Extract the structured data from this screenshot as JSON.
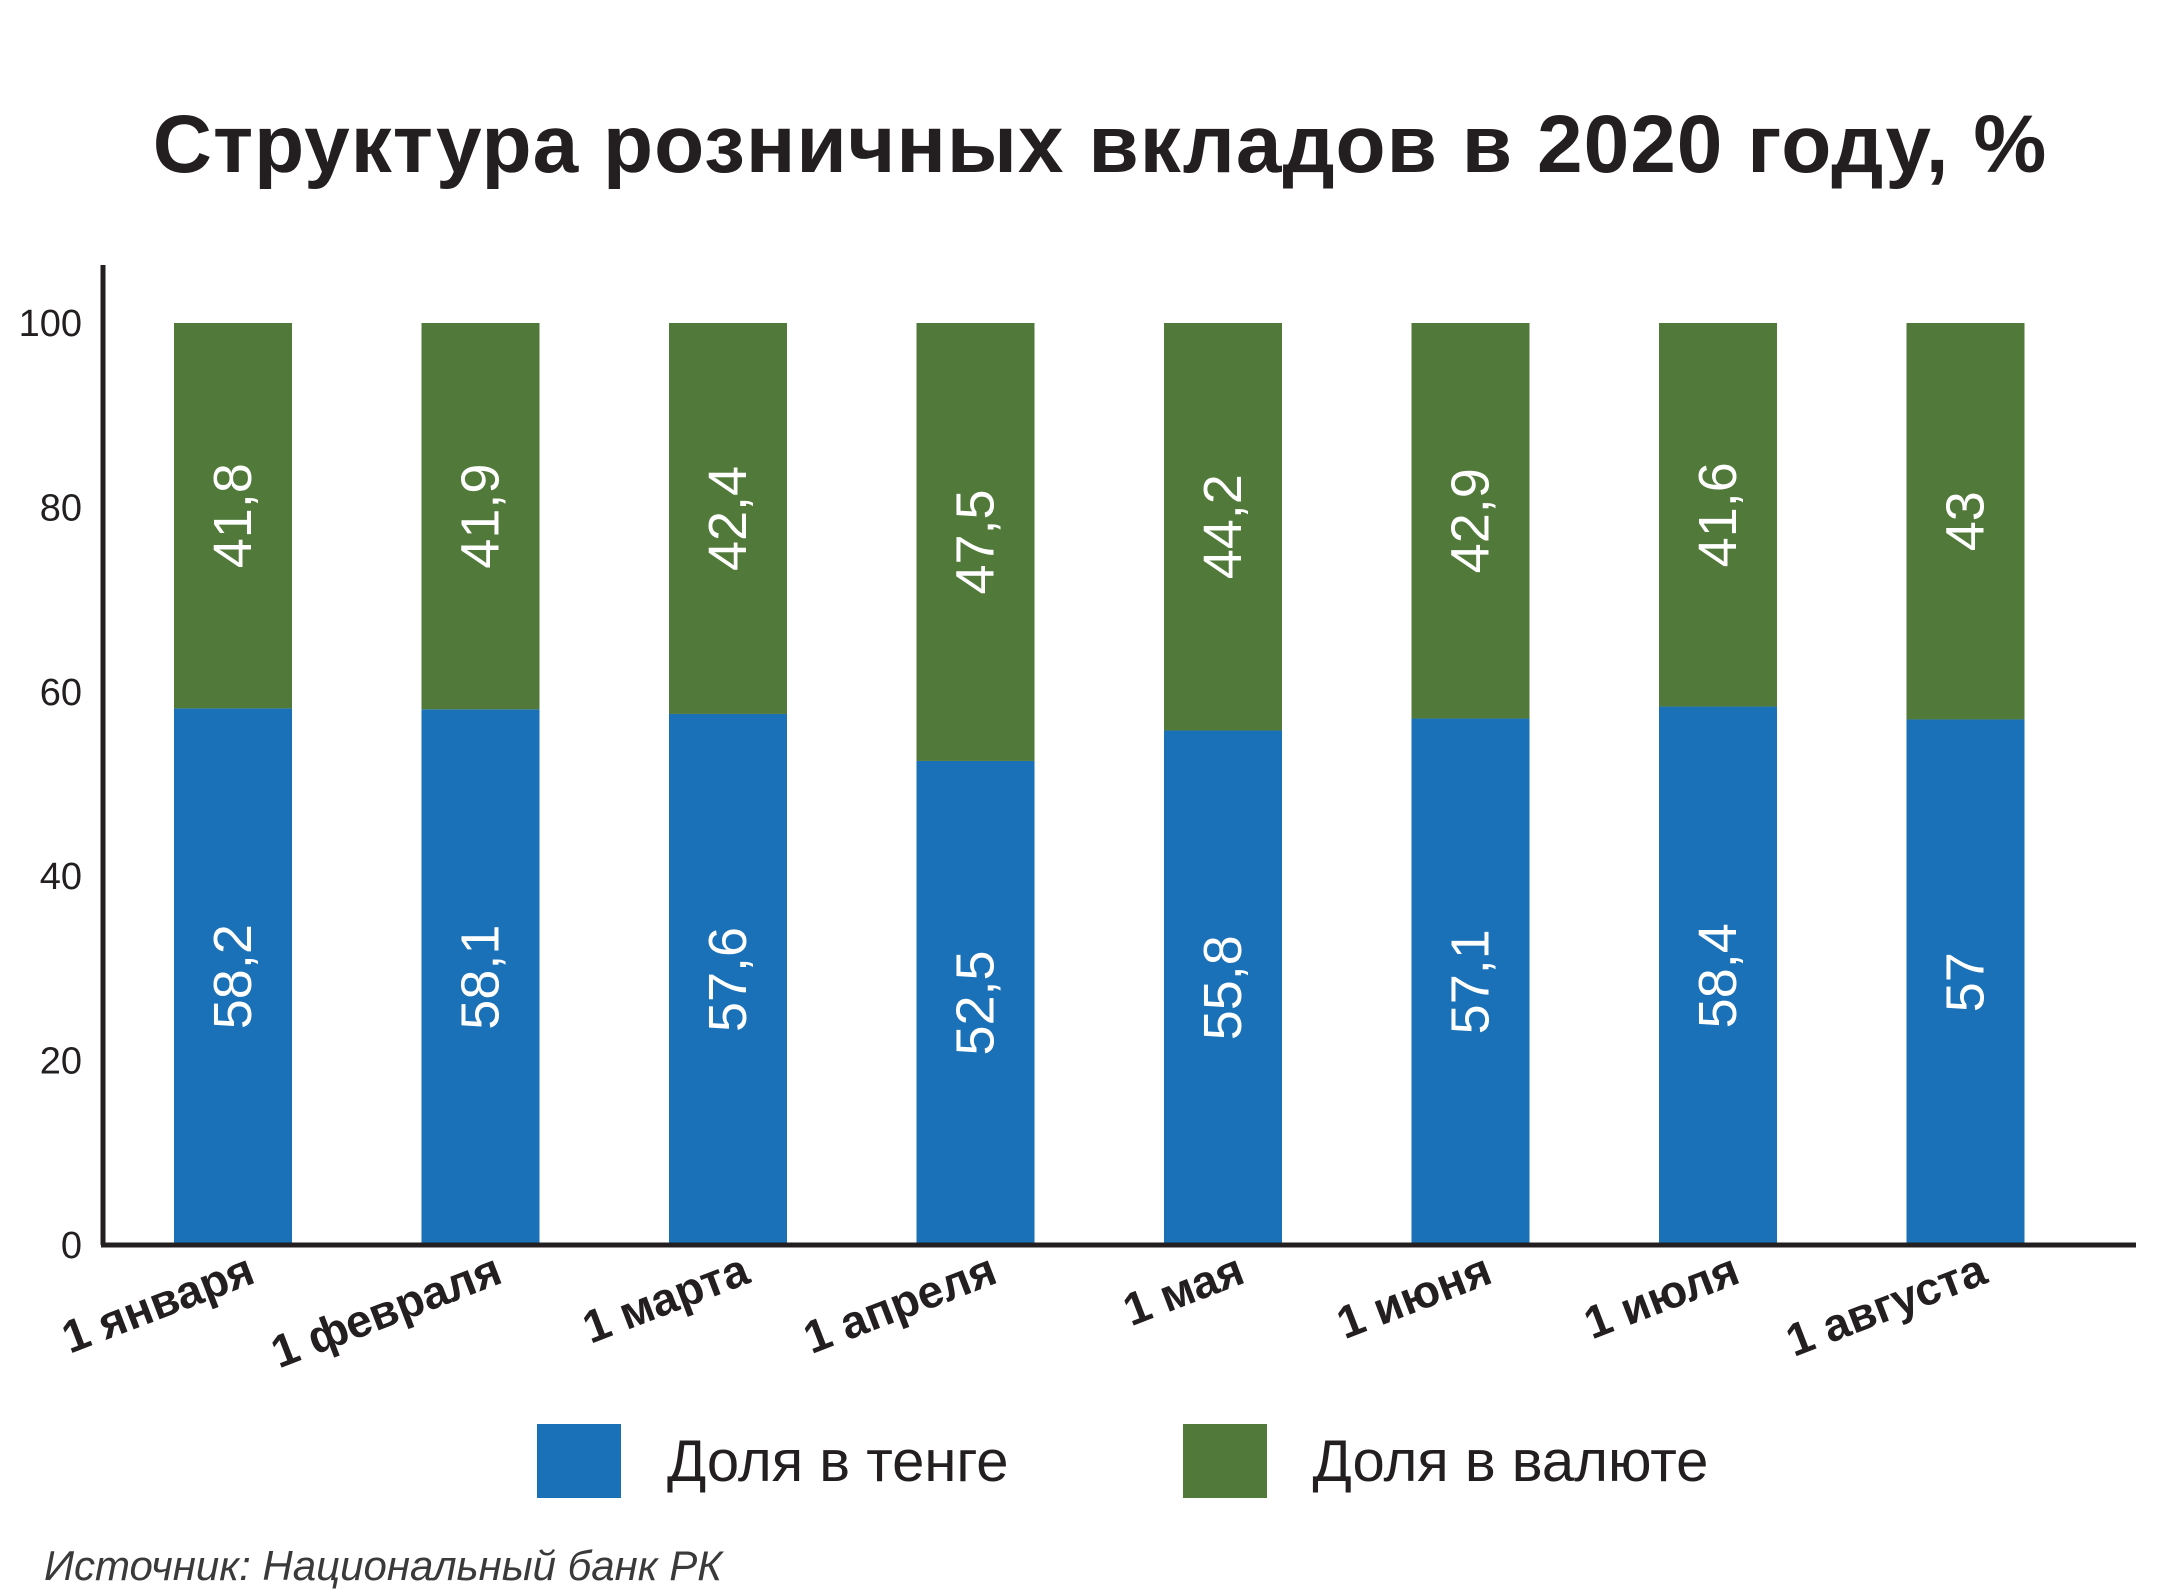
{
  "chart_data": {
    "type": "bar",
    "stacked": true,
    "title": "Структура розничных вкладов в 2020 году, %",
    "categories": [
      "1 января",
      "1 февраля",
      "1 марта",
      "1 апреля",
      "1 мая",
      "1 июня",
      "1 июля",
      "1 августа"
    ],
    "series": [
      {
        "name": "Доля в тенге",
        "color": "#1a71b8",
        "values": [
          58.2,
          58.1,
          57.6,
          52.5,
          55.8,
          57.1,
          58.4,
          57
        ],
        "labels": [
          "58,2",
          "58,1",
          "57,6",
          "52,5",
          "55,8",
          "57,1",
          "58,4",
          "57"
        ]
      },
      {
        "name": "Доля в валюте",
        "color": "#51793a",
        "values": [
          41.8,
          41.9,
          42.4,
          47.5,
          44.2,
          42.9,
          41.6,
          43
        ],
        "labels": [
          "41,8",
          "41,9",
          "42,4",
          "47,5",
          "44,2",
          "42,9",
          "41,6",
          "43"
        ]
      }
    ],
    "ylim": [
      0,
      100
    ],
    "yticks": [
      0,
      20,
      40,
      60,
      80,
      100
    ],
    "grid": false,
    "legend": "bottom"
  },
  "source": "Источник: Национальный банк РК"
}
